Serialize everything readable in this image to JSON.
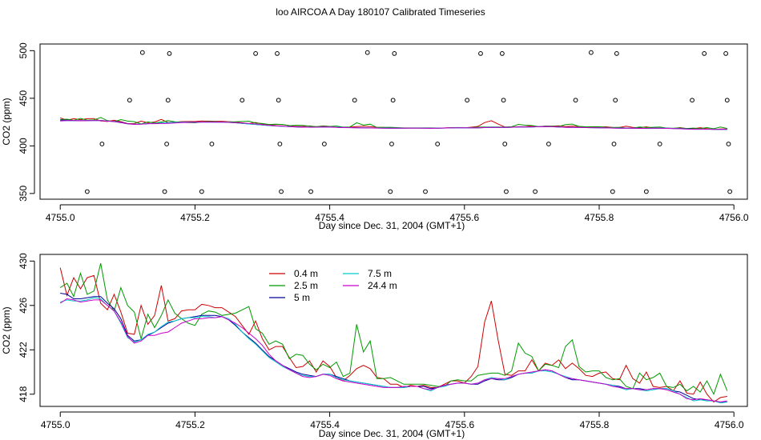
{
  "page_title": "loo AIRCOA A  Day 180107  Calibrated Timeseries",
  "chart_data": [
    {
      "type": "scatter",
      "title": "loo AIRCOA A  Day 180107  Calibrated Timeseries",
      "xlabel": "Day since Dec. 31, 2004 (GMT+1)",
      "ylabel": "CO2 (ppm)",
      "xlim": [
        4754.97,
        4756.02
      ],
      "ylim": [
        344,
        507
      ],
      "xticks": [
        4755.0,
        4755.2,
        4755.4,
        4755.6,
        4755.8,
        4756.0
      ],
      "xtick_labels": [
        "4755.0",
        "4755.2",
        "4755.4",
        "4755.6",
        "4755.8",
        "4756.0"
      ],
      "yticks": [
        350,
        400,
        450,
        500
      ],
      "ytick_labels": [
        "350",
        "400",
        "450",
        "500"
      ],
      "reference_points": [
        {
          "x": 4755.04,
          "y": 352
        },
        {
          "x": 4755.062,
          "y": 402
        },
        {
          "x": 4755.103,
          "y": 448
        },
        {
          "x": 4755.122,
          "y": 498
        },
        {
          "x": 4755.155,
          "y": 352
        },
        {
          "x": 4755.158,
          "y": 402
        },
        {
          "x": 4755.16,
          "y": 448
        },
        {
          "x": 4755.162,
          "y": 497
        },
        {
          "x": 4755.21,
          "y": 352
        },
        {
          "x": 4755.225,
          "y": 402
        },
        {
          "x": 4755.27,
          "y": 448
        },
        {
          "x": 4755.29,
          "y": 497
        },
        {
          "x": 4755.322,
          "y": 497
        },
        {
          "x": 4755.324,
          "y": 448
        },
        {
          "x": 4755.326,
          "y": 402
        },
        {
          "x": 4755.328,
          "y": 352
        },
        {
          "x": 4755.372,
          "y": 352
        },
        {
          "x": 4755.392,
          "y": 402
        },
        {
          "x": 4755.437,
          "y": 448
        },
        {
          "x": 4755.456,
          "y": 498
        },
        {
          "x": 4755.49,
          "y": 352
        },
        {
          "x": 4755.492,
          "y": 402
        },
        {
          "x": 4755.494,
          "y": 448
        },
        {
          "x": 4755.496,
          "y": 497
        },
        {
          "x": 4755.542,
          "y": 352
        },
        {
          "x": 4755.56,
          "y": 402
        },
        {
          "x": 4755.604,
          "y": 448
        },
        {
          "x": 4755.624,
          "y": 497
        },
        {
          "x": 4755.656,
          "y": 497
        },
        {
          "x": 4755.658,
          "y": 448
        },
        {
          "x": 4755.66,
          "y": 402
        },
        {
          "x": 4755.662,
          "y": 352
        },
        {
          "x": 4755.705,
          "y": 352
        },
        {
          "x": 4755.725,
          "y": 402
        },
        {
          "x": 4755.765,
          "y": 448
        },
        {
          "x": 4755.788,
          "y": 498
        },
        {
          "x": 4755.82,
          "y": 352
        },
        {
          "x": 4755.822,
          "y": 402
        },
        {
          "x": 4755.824,
          "y": 448
        },
        {
          "x": 4755.826,
          "y": 497
        },
        {
          "x": 4755.87,
          "y": 352
        },
        {
          "x": 4755.89,
          "y": 402
        },
        {
          "x": 4755.938,
          "y": 448
        },
        {
          "x": 4755.956,
          "y": 497
        },
        {
          "x": 4755.988,
          "y": 497
        },
        {
          "x": 4755.99,
          "y": 448
        },
        {
          "x": 4755.992,
          "y": 402
        },
        {
          "x": 4755.994,
          "y": 352
        }
      ],
      "series_colors": [
        "#cc0000",
        "#009900",
        "#000099",
        "#00cccc",
        "#cc00cc"
      ]
    },
    {
      "type": "line",
      "title": "",
      "xlabel": "Day since Dec. 31, 2004 (GMT+1)",
      "ylabel": "CO2 (ppm)",
      "xlim": [
        4754.97,
        4756.02
      ],
      "ylim": [
        416.9,
        430.6
      ],
      "xticks": [
        4755.0,
        4755.2,
        4755.4,
        4755.6,
        4755.8,
        4756.0
      ],
      "xtick_labels": [
        "4755.0",
        "4755.2",
        "4755.4",
        "4755.6",
        "4755.8",
        "4756.0"
      ],
      "yticks": [
        418,
        422,
        426,
        430
      ],
      "ytick_labels": [
        "418",
        "422",
        "426",
        "430"
      ],
      "legend_position": "top-center",
      "legend": [
        {
          "label": "0.4 m",
          "color": "#cc0000"
        },
        {
          "label": "2.5 m",
          "color": "#009900"
        },
        {
          "label": "5 m",
          "color": "#000099"
        },
        {
          "label": "7.5 m",
          "color": "#00cccc"
        },
        {
          "label": "24.4 m",
          "color": "#cc00cc"
        }
      ],
      "x_start": 4755.0,
      "x_step": 0.01,
      "series": [
        {
          "name": "0.4 m",
          "color": "#cc0000",
          "values": [
            429.4,
            426.9,
            428.5,
            427.5,
            428.5,
            428.7,
            426.2,
            425.6,
            427.0,
            425.4,
            423.5,
            423.4,
            426.0,
            424.3,
            425.1,
            427.8,
            424.6,
            424.8,
            425.5,
            425.6,
            425.6,
            426.1,
            426.0,
            425.8,
            425.8,
            425.4,
            425.0,
            424.2,
            423.4,
            424.6,
            423.0,
            422.0,
            422.3,
            422.3,
            421.3,
            420.4,
            420.5,
            421.0,
            420.0,
            421.0,
            420.5,
            419.5,
            419.2,
            419.7,
            420.3,
            420.6,
            420.3,
            419.5,
            419.4,
            418.9,
            418.9,
            418.6,
            418.8,
            418.7,
            418.8,
            418.6,
            418.6,
            418.9,
            419.2,
            419.2,
            419.0,
            419.6,
            420.5,
            424.5,
            426.4,
            422.9,
            419.8,
            419.7,
            420.1,
            420.1,
            421.1,
            420.1,
            420.8,
            420.6,
            421.1,
            420.3,
            420.8,
            420.3,
            419.7,
            419.6,
            419.9,
            420.0,
            419.4,
            419.3,
            420.6,
            419.4,
            419.0,
            420.0,
            418.7,
            418.6,
            418.7,
            418.3,
            419.2,
            418.1,
            418.0,
            419.1,
            418.0,
            417.3,
            417.7,
            417.8
          ]
        },
        {
          "name": "2.5 m",
          "color": "#009900",
          "values": [
            427.6,
            428.0,
            426.8,
            428.9,
            427.0,
            427.3,
            429.8,
            426.5,
            425.5,
            427.6,
            426.0,
            425.4,
            423.0,
            425.2,
            424.0,
            425.1,
            426.5,
            425.3,
            424.8,
            424.4,
            424.2,
            425.2,
            425.5,
            425.4,
            425.1,
            425.2,
            425.3,
            425.6,
            425.9,
            423.9,
            423.5,
            422.5,
            422.8,
            422.5,
            421.2,
            421.6,
            421.5,
            420.7,
            420.2,
            420.7,
            420.4,
            420.9,
            419.6,
            419.9,
            424.3,
            421.8,
            422.8,
            419.4,
            419.4,
            419.5,
            419.2,
            418.9,
            418.9,
            418.9,
            418.9,
            418.8,
            418.7,
            418.7,
            419.2,
            419.3,
            419.2,
            419.2,
            419.7,
            419.8,
            419.9,
            419.9,
            419.7,
            420.1,
            422.6,
            421.7,
            421.4,
            420.1,
            420.7,
            420.6,
            420.4,
            422.3,
            422.9,
            420.5,
            420.0,
            420.1,
            420.1,
            419.5,
            419.3,
            419.4,
            418.7,
            418.5,
            419.9,
            419.3,
            419.5,
            419.9,
            418.7,
            418.6,
            418.9,
            418.3,
            418.7,
            418.2,
            419.2,
            418.0,
            419.8,
            418.3
          ]
        },
        {
          "name": "5 m",
          "color": "#000099",
          "values": [
            427.1,
            427.0,
            426.6,
            426.6,
            426.7,
            426.8,
            426.8,
            426.2,
            425.7,
            424.8,
            423.3,
            422.8,
            422.9,
            423.3,
            423.6,
            424.0,
            424.4,
            424.6,
            424.8,
            424.9,
            425.0,
            425.1,
            425.1,
            425.1,
            425.0,
            424.7,
            424.2,
            423.6,
            423.1,
            422.6,
            422.0,
            421.4,
            421.0,
            420.6,
            420.3,
            420.0,
            419.8,
            419.7,
            419.6,
            419.8,
            419.8,
            419.6,
            419.4,
            419.2,
            419.1,
            419.0,
            418.9,
            418.8,
            418.7,
            418.6,
            418.6,
            418.6,
            418.7,
            418.7,
            418.7,
            418.5,
            418.6,
            418.8,
            418.9,
            419.0,
            419.0,
            418.9,
            418.9,
            419.2,
            419.4,
            419.3,
            419.3,
            419.5,
            419.8,
            419.9,
            419.9,
            420.1,
            420.2,
            420.1,
            419.8,
            419.5,
            419.3,
            419.3,
            419.2,
            419.1,
            419.0,
            418.9,
            418.8,
            418.7,
            418.5,
            418.5,
            418.5,
            418.4,
            418.5,
            418.5,
            418.5,
            418.3,
            418.2,
            417.9,
            417.6,
            417.5,
            417.5,
            417.4,
            417.3,
            417.3
          ]
        },
        {
          "name": "7.5 m",
          "color": "#00cccc",
          "values": [
            426.3,
            426.5,
            426.4,
            426.4,
            426.5,
            426.7,
            426.6,
            426.0,
            425.5,
            424.4,
            423.1,
            422.7,
            422.9,
            423.4,
            423.6,
            424.1,
            424.5,
            424.6,
            424.8,
            424.9,
            424.9,
            425.0,
            425.0,
            424.9,
            425.0,
            424.8,
            424.3,
            423.6,
            423.0,
            422.5,
            421.9,
            421.3,
            420.9,
            420.5,
            420.2,
            419.9,
            419.7,
            419.6,
            419.6,
            419.8,
            419.8,
            419.5,
            419.3,
            419.2,
            419.1,
            419.0,
            418.9,
            418.8,
            418.7,
            418.6,
            418.6,
            418.6,
            418.7,
            418.7,
            418.5,
            418.3,
            418.6,
            418.7,
            418.9,
            419.0,
            419.0,
            418.9,
            419.0,
            419.3,
            419.5,
            419.4,
            419.3,
            419.6,
            419.8,
            419.9,
            419.9,
            420.1,
            420.1,
            420.0,
            419.8,
            419.6,
            419.4,
            419.3,
            419.2,
            419.1,
            419.0,
            418.9,
            418.8,
            418.6,
            418.4,
            418.5,
            418.4,
            418.3,
            418.4,
            418.5,
            418.5,
            418.3,
            418.0,
            417.7,
            417.4,
            417.5,
            417.4,
            417.4,
            417.2,
            417.3
          ]
        },
        {
          "name": "24.4 m",
          "color": "#cc00cc",
          "values": [
            426.2,
            426.6,
            426.5,
            426.3,
            426.4,
            426.5,
            426.5,
            426.0,
            425.5,
            424.5,
            423.2,
            422.6,
            422.8,
            423.3,
            423.3,
            423.5,
            423.6,
            424.0,
            424.4,
            424.6,
            424.8,
            424.8,
            424.9,
            424.9,
            425.0,
            424.7,
            424.4,
            424.0,
            423.5,
            423.0,
            422.4,
            421.6,
            421.0,
            420.6,
            420.2,
            419.9,
            419.6,
            419.5,
            419.6,
            419.8,
            419.7,
            419.4,
            419.2,
            419.1,
            419.0,
            418.9,
            418.8,
            418.7,
            418.6,
            418.6,
            418.6,
            418.7,
            418.7,
            418.7,
            418.5,
            418.4,
            418.6,
            418.8,
            418.9,
            419.0,
            419.0,
            418.9,
            419.0,
            419.3,
            419.4,
            419.4,
            419.4,
            419.6,
            419.8,
            419.9,
            420.0,
            420.1,
            420.2,
            420.1,
            419.8,
            419.5,
            419.4,
            419.3,
            419.2,
            419.1,
            419.0,
            418.9,
            418.7,
            418.6,
            418.5,
            418.5,
            418.4,
            418.4,
            418.5,
            418.5,
            418.4,
            418.2,
            418.0,
            417.6,
            417.5,
            417.6,
            417.5,
            417.4,
            417.3,
            417.4
          ]
        }
      ]
    }
  ]
}
